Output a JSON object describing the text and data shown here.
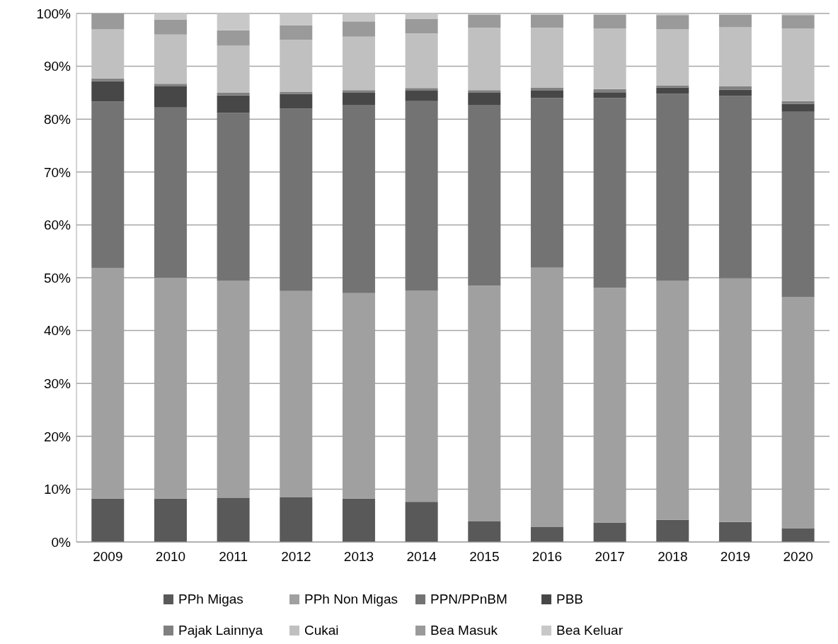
{
  "chart_data": {
    "type": "bar",
    "stacked": true,
    "categories": [
      "2009",
      "2010",
      "2011",
      "2012",
      "2013",
      "2014",
      "2015",
      "2016",
      "2017",
      "2018",
      "2019",
      "2020"
    ],
    "series": [
      {
        "name": "PPh Migas",
        "color": "#595959",
        "values": [
          8.2,
          8.2,
          8.3,
          8.5,
          8.2,
          7.6,
          3.9,
          2.8,
          3.7,
          4.2,
          3.8,
          2.6
        ]
      },
      {
        "name": "PPh Non Migas",
        "color": "#a0a0a0",
        "values": [
          43.6,
          41.8,
          41.1,
          39.0,
          38.9,
          40.0,
          44.6,
          49.1,
          44.4,
          45.2,
          46.1,
          43.7
        ]
      },
      {
        "name": "PPN/PPnBM",
        "color": "#737373",
        "values": [
          31.5,
          32.2,
          31.8,
          34.5,
          35.6,
          35.8,
          34.2,
          32.1,
          35.9,
          35.4,
          34.5,
          35.1
        ]
      },
      {
        "name": "PBB",
        "color": "#474747",
        "values": [
          3.9,
          4.0,
          3.3,
          2.8,
          2.3,
          2.0,
          2.3,
          1.4,
          1.1,
          1.2,
          1.2,
          1.5
        ]
      },
      {
        "name": "Pajak Lainnya",
        "color": "#808080",
        "values": [
          0.5,
          0.5,
          0.5,
          0.4,
          0.5,
          0.5,
          0.5,
          0.6,
          0.6,
          0.4,
          0.6,
          0.5
        ]
      },
      {
        "name": "Cukai",
        "color": "#c0c0c0",
        "values": [
          9.3,
          9.3,
          8.9,
          9.8,
          10.1,
          10.3,
          11.8,
          11.3,
          11.5,
          10.6,
          11.2,
          13.8
        ]
      },
      {
        "name": "Bea Masuk",
        "color": "#9a9a9a",
        "values": [
          3.0,
          2.8,
          2.9,
          2.8,
          2.9,
          2.8,
          2.5,
          2.5,
          2.6,
          2.7,
          2.4,
          2.5
        ]
      },
      {
        "name": "Bea Keluar",
        "color": "#c8c8c8",
        "values": [
          0,
          1.2,
          3.2,
          2.2,
          1.5,
          1.0,
          null,
          null,
          null,
          0.3,
          null,
          0.3
        ]
      }
    ],
    "ylim": [
      0,
      100
    ],
    "yticks": [
      {
        "value": 0,
        "label": "0%"
      },
      {
        "value": 10,
        "label": "10%"
      },
      {
        "value": 20,
        "label": "20%"
      },
      {
        "value": 30,
        "label": "30%"
      },
      {
        "value": 40,
        "label": "40%"
      },
      {
        "value": 50,
        "label": "50%"
      },
      {
        "value": 60,
        "label": "60%"
      },
      {
        "value": 70,
        "label": "70%"
      },
      {
        "value": 80,
        "label": "80%"
      },
      {
        "value": 90,
        "label": "90%"
      },
      {
        "value": 100,
        "label": "100%"
      }
    ],
    "grid": "y",
    "legend": "bottom"
  }
}
